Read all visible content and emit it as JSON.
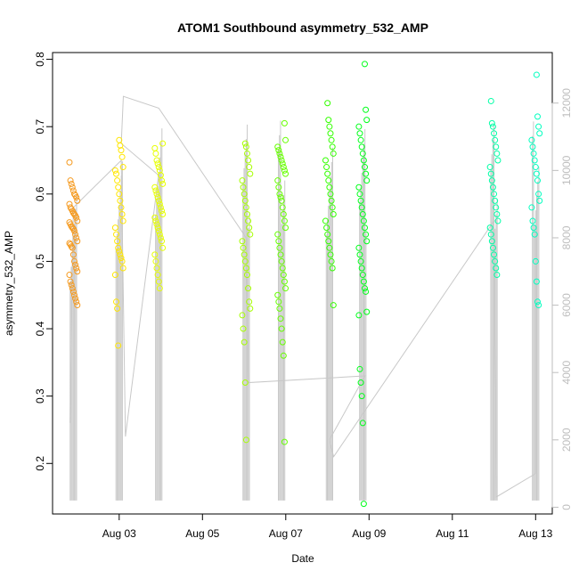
{
  "chart_data": {
    "type": "scatter",
    "title": "ATOM1 Southbound asymmetry_532_AMP",
    "xlabel": "Date",
    "ylabel": "asymmetry_532_AMP",
    "x_ticks": [
      "Aug 03",
      "Aug 05",
      "Aug 07",
      "Aug 09",
      "Aug 11",
      "Aug 13"
    ],
    "x_tick_dates": [
      "Aug 03",
      "Aug 05",
      "Aug 07",
      "Aug 09",
      "Aug 11",
      "Aug 13"
    ],
    "xlim_days": [
      1.4,
      13.4
    ],
    "ylim": [
      0.125,
      0.81
    ],
    "y_ticks": [
      0.2,
      0.3,
      0.4,
      0.5,
      0.6,
      0.7,
      0.8
    ],
    "y2_ticks": [
      0,
      2000,
      4000,
      6000,
      8000,
      10000,
      12000
    ],
    "y2lim": [
      -200,
      13500
    ],
    "y2_color": "#bebebe",
    "grid": false,
    "legend": "none",
    "point_style": "open-circle",
    "series": [
      {
        "day": 1.9,
        "color": "#f59a1f",
        "values": [
          0.647,
          0.62,
          0.615,
          0.61,
          0.605,
          0.6,
          0.598,
          0.595,
          0.59,
          0.585,
          0.58,
          0.578,
          0.575,
          0.572,
          0.57,
          0.568,
          0.565,
          0.56,
          0.558,
          0.555,
          0.552,
          0.55,
          0.548,
          0.545,
          0.54,
          0.535,
          0.53,
          0.527,
          0.525,
          0.522,
          0.52,
          0.51,
          0.5,
          0.495,
          0.49,
          0.485,
          0.48,
          0.47,
          0.465,
          0.46,
          0.455,
          0.45,
          0.445,
          0.44,
          0.435
        ]
      },
      {
        "day": 3.0,
        "color": "#ffe600",
        "values": [
          0.68,
          0.672,
          0.665,
          0.655,
          0.64,
          0.635,
          0.63,
          0.62,
          0.61,
          0.6,
          0.59,
          0.58,
          0.57,
          0.56,
          0.55,
          0.54,
          0.53,
          0.52,
          0.515,
          0.51,
          0.505,
          0.5,
          0.49,
          0.48,
          0.44,
          0.43,
          0.375
        ]
      },
      {
        "day": 3.95,
        "color": "#e6ff00",
        "values": [
          0.675,
          0.668,
          0.66,
          0.65,
          0.645,
          0.64,
          0.635,
          0.628,
          0.62,
          0.615,
          0.61,
          0.605,
          0.6,
          0.595,
          0.59,
          0.585,
          0.58,
          0.575,
          0.57,
          0.565,
          0.56,
          0.555,
          0.55,
          0.545,
          0.54,
          0.535,
          0.53,
          0.52,
          0.51,
          0.5,
          0.49,
          0.48,
          0.47,
          0.46
        ]
      },
      {
        "day": 6.05,
        "color": "#a6ff00",
        "values": [
          0.675,
          0.67,
          0.66,
          0.65,
          0.64,
          0.63,
          0.62,
          0.61,
          0.6,
          0.59,
          0.58,
          0.57,
          0.56,
          0.55,
          0.54,
          0.53,
          0.52,
          0.51,
          0.5,
          0.49,
          0.48,
          0.46,
          0.44,
          0.43,
          0.42,
          0.4,
          0.38,
          0.32,
          0.235
        ]
      },
      {
        "day": 6.9,
        "color": "#66ff00",
        "values": [
          0.705,
          0.68,
          0.67,
          0.665,
          0.66,
          0.655,
          0.65,
          0.645,
          0.64,
          0.635,
          0.63,
          0.62,
          0.61,
          0.6,
          0.595,
          0.59,
          0.58,
          0.57,
          0.56,
          0.55,
          0.54,
          0.53,
          0.52,
          0.51,
          0.5,
          0.49,
          0.48,
          0.47,
          0.46,
          0.45,
          0.44,
          0.43,
          0.415,
          0.4,
          0.38,
          0.36,
          0.232
        ]
      },
      {
        "day": 8.05,
        "color": "#33ff00",
        "values": [
          0.735,
          0.71,
          0.7,
          0.69,
          0.68,
          0.67,
          0.66,
          0.65,
          0.64,
          0.63,
          0.62,
          0.61,
          0.6,
          0.59,
          0.58,
          0.57,
          0.56,
          0.55,
          0.54,
          0.53,
          0.52,
          0.51,
          0.5,
          0.49,
          0.435
        ]
      },
      {
        "day": 8.85,
        "color": "#00ff1a",
        "values": [
          0.793,
          0.725,
          0.71,
          0.7,
          0.69,
          0.68,
          0.67,
          0.66,
          0.65,
          0.64,
          0.63,
          0.62,
          0.61,
          0.6,
          0.59,
          0.58,
          0.57,
          0.56,
          0.55,
          0.54,
          0.53,
          0.52,
          0.51,
          0.5,
          0.49,
          0.48,
          0.47,
          0.46,
          0.455,
          0.425,
          0.42,
          0.34,
          0.32,
          0.3,
          0.26,
          0.14
        ]
      },
      {
        "day": 12.0,
        "color": "#00ffa6",
        "values": [
          0.738,
          0.705,
          0.7,
          0.69,
          0.68,
          0.67,
          0.66,
          0.65,
          0.64,
          0.63,
          0.62,
          0.61,
          0.6,
          0.59,
          0.58,
          0.57,
          0.56,
          0.55,
          0.54,
          0.53,
          0.52,
          0.51,
          0.5,
          0.49,
          0.48
        ]
      },
      {
        "day": 13.0,
        "color": "#00ffbf",
        "values": [
          0.777,
          0.715,
          0.7,
          0.69,
          0.68,
          0.67,
          0.66,
          0.65,
          0.64,
          0.63,
          0.62,
          0.6,
          0.59,
          0.58,
          0.56,
          0.55,
          0.54,
          0.5,
          0.47,
          0.44,
          0.435
        ]
      }
    ],
    "y2_line": {
      "color": "#c8c8c8",
      "points": [
        [
          1.82,
          2500
        ],
        [
          1.9,
          8900
        ],
        [
          3.05,
          10300
        ],
        [
          3.15,
          2100
        ],
        [
          3.95,
          9900
        ],
        [
          4.0,
          9800
        ],
        [
          3.05,
          10800
        ],
        [
          3.1,
          12200
        ],
        [
          3.95,
          11850
        ],
        [
          6.05,
          8000
        ],
        [
          6.1,
          3700
        ],
        [
          8.9,
          3900
        ],
        [
          8.05,
          2000
        ],
        [
          8.15,
          1500
        ],
        [
          12.0,
          8500
        ],
        [
          12.05,
          300
        ],
        [
          13.0,
          1000
        ],
        [
          13.0,
          8200
        ]
      ]
    }
  }
}
